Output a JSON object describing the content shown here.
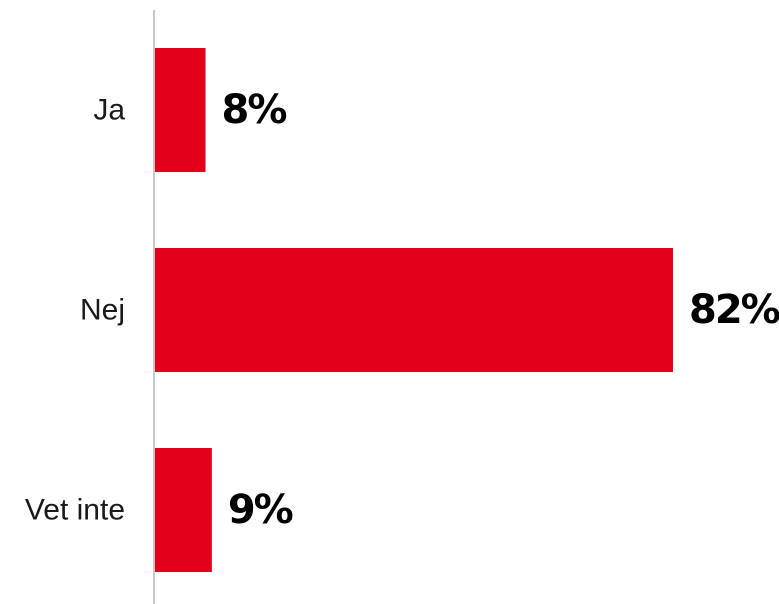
{
  "chart_data": {
    "type": "bar",
    "orientation": "horizontal",
    "categories": [
      "Ja",
      "Nej",
      "Vet inte"
    ],
    "values": [
      8,
      82,
      9
    ],
    "value_labels": [
      "8%",
      "82%",
      "9%"
    ],
    "unit": "%",
    "title": "",
    "xlabel": "",
    "ylabel": "",
    "xlim": [
      0,
      82
    ],
    "grid": false,
    "legend": "none",
    "bar_color": "#E2001A",
    "axis_color": "#c8c8c8"
  }
}
